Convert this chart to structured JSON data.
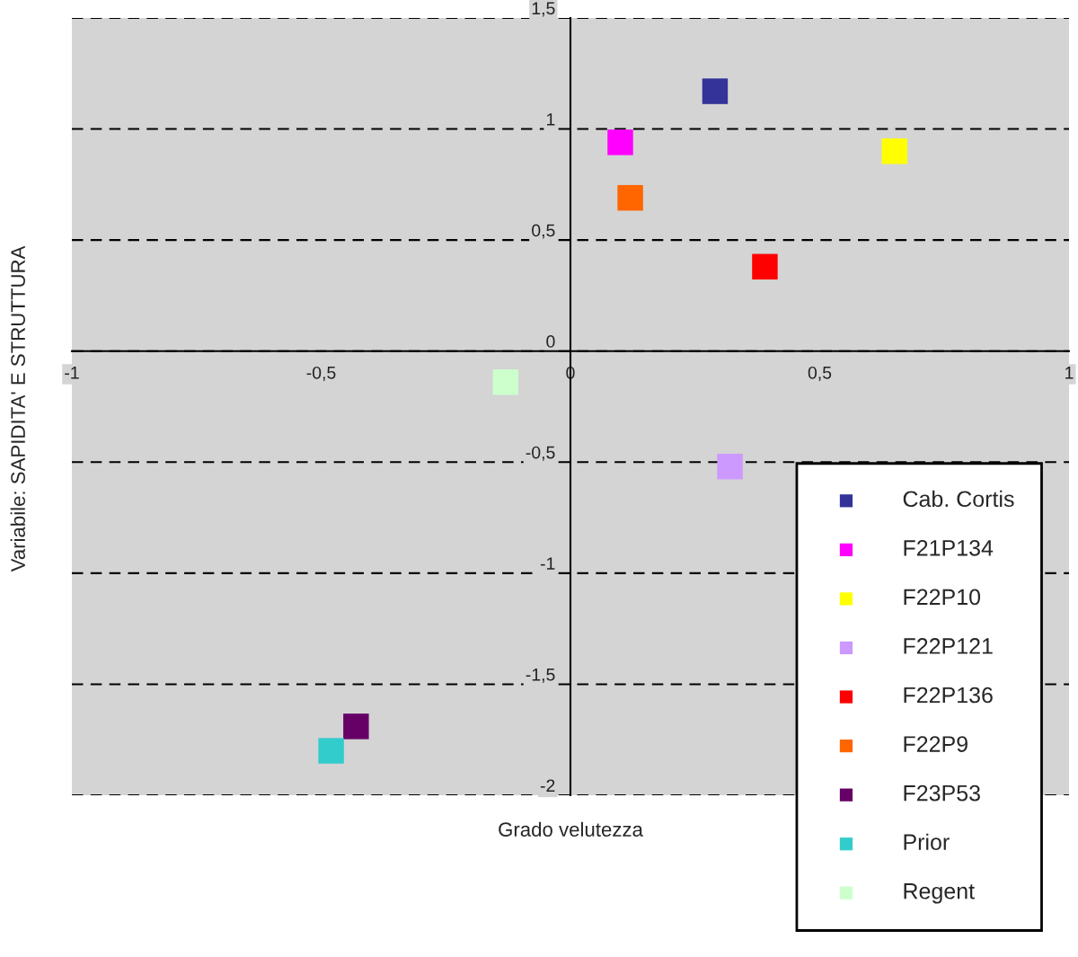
{
  "chart_data": {
    "type": "scatter",
    "xlabel": "Grado velutezza",
    "ylabel": "Variabile: SAPIDITA' E STRUTTURA",
    "xlim": [
      -1,
      1
    ],
    "ylim": [
      -2,
      1.5
    ],
    "xticks": [
      {
        "value": -1,
        "label": "-1"
      },
      {
        "value": -0.5,
        "label": "-0,5"
      },
      {
        "value": 0,
        "label": "0"
      },
      {
        "value": 0.5,
        "label": "0,5"
      },
      {
        "value": 1,
        "label": "1"
      }
    ],
    "yticks": [
      {
        "value": -2,
        "label": "-2"
      },
      {
        "value": -1.5,
        "label": "-1,5"
      },
      {
        "value": -1,
        "label": "-1"
      },
      {
        "value": -0.5,
        "label": "-0,5"
      },
      {
        "value": 0,
        "label": "0"
      },
      {
        "value": 0.5,
        "label": "0,5"
      },
      {
        "value": 1,
        "label": "1"
      },
      {
        "value": 1.5,
        "label": "1,5"
      }
    ],
    "grid": "y",
    "legend": "bottom right",
    "marker": "square",
    "series": [
      {
        "name": "Cab. Cortis",
        "color": "#333399",
        "x": [
          0.29
        ],
        "values": [
          1.17
        ]
      },
      {
        "name": "F21P134",
        "color": "#ff00ff",
        "x": [
          0.1
        ],
        "values": [
          0.94
        ]
      },
      {
        "name": "F22P10",
        "color": "#ffff00",
        "x": [
          0.65
        ],
        "values": [
          0.9
        ]
      },
      {
        "name": "F22P121",
        "color": "#cc99ff",
        "x": [
          0.32
        ],
        "values": [
          -0.52
        ]
      },
      {
        "name": "F22P136",
        "color": "#ff0000",
        "x": [
          0.39
        ],
        "values": [
          0.38
        ]
      },
      {
        "name": "F22P9",
        "color": "#ff6600",
        "x": [
          0.12
        ],
        "values": [
          0.69
        ]
      },
      {
        "name": "F23P53",
        "color": "#660066",
        "x": [
          -0.43
        ],
        "values": [
          -1.69
        ]
      },
      {
        "name": "Prior",
        "color": "#33cccc",
        "x": [
          -0.48
        ],
        "values": [
          -1.8
        ]
      },
      {
        "name": "Regent",
        "color": "#ccffcc",
        "x": [
          -0.13
        ],
        "values": [
          -0.14
        ]
      }
    ]
  }
}
